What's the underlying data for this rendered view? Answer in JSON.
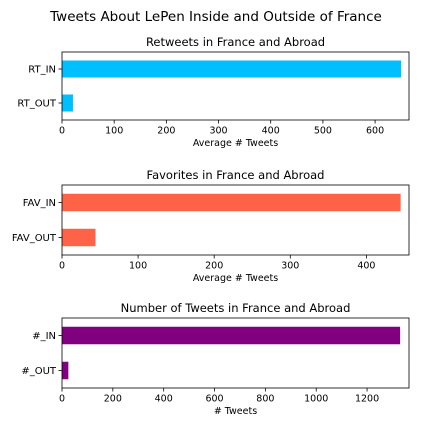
{
  "figure": {
    "suptitle": "Tweets About LePen Inside and Outside of France"
  },
  "chart_data": [
    {
      "type": "bar",
      "orientation": "horizontal",
      "title": "Retweets in France and Abroad",
      "xlabel": "Average # Tweets",
      "ylabel": "",
      "categories": [
        "RT_IN",
        "RT_OUT"
      ],
      "values": [
        650,
        21
      ],
      "xlim": [
        0,
        665
      ],
      "xticks": [
        0,
        100,
        200,
        300,
        400,
        500,
        600
      ],
      "color": "#00bfff",
      "grid": false,
      "legend": false
    },
    {
      "type": "bar",
      "orientation": "horizontal",
      "title": "Favorites in France and Abroad",
      "xlabel": "Average # Tweets",
      "ylabel": "",
      "categories": [
        "FAV_IN",
        "FAV_OUT"
      ],
      "values": [
        445,
        44
      ],
      "xlim": [
        0,
        456
      ],
      "xticks": [
        0,
        100,
        200,
        300,
        400
      ],
      "color": "#ff6347",
      "grid": false,
      "legend": false
    },
    {
      "type": "bar",
      "orientation": "horizontal",
      "title": "Number of Tweets in France and Abroad",
      "xlabel": "# Tweets",
      "ylabel": "",
      "categories": [
        "#_IN",
        "#_OUT"
      ],
      "values": [
        1330,
        25
      ],
      "xlim": [
        0,
        1365
      ],
      "xticks": [
        0,
        200,
        400,
        600,
        800,
        1000,
        1200
      ],
      "color": "#800080",
      "grid": false,
      "legend": false
    }
  ]
}
